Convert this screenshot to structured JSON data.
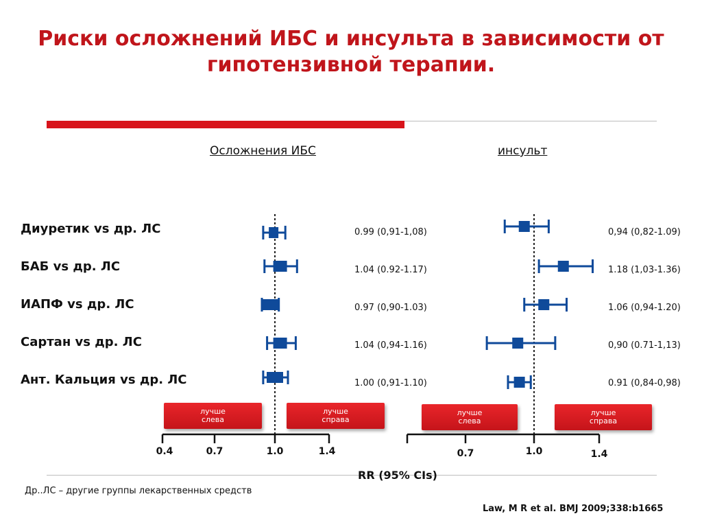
{
  "title_line1": "Риски осложнений ИБС и инсульта в зависимости от",
  "title_line2": "гипотензивной терапии.",
  "colors": {
    "title": "#c0151b",
    "accent_bar": "#d8141b",
    "marker": "#0f4a9a",
    "button": "#d81b20"
  },
  "row_labels": [
    "Диуретик vs др. ЛС",
    "БАБ vs др. ЛС",
    "ИАПФ vs др. ЛС",
    "Сартан vs др. ЛС",
    "Ант. Кальция vs др. ЛС"
  ],
  "better_left": "лучше\nслева",
  "better_right": "лучше\nсправа",
  "better_left_l1": "лучше",
  "better_left_l2": "слева",
  "better_right_l1": "лучше",
  "better_right_l2": "справа",
  "x_axis_title": "RR (95% CIs)",
  "footnote": "Др..ЛС – другие группы лекарственных средств",
  "citation": "Law, M R et al. BMJ 2009;338:b1665",
  "chart_data": [
    {
      "type": "scatter",
      "title": "Осложнения ИБС",
      "xlabel": "RR (95% CIs)",
      "ticks": [
        "0.4",
        "0.7",
        "1.0",
        "1.4"
      ],
      "reference_line": 1.0,
      "categories": [
        "Диуретик vs др. ЛС",
        "БАБ vs др. ЛС",
        "ИАПФ vs др. ЛС",
        "Сартан vs др. ЛС",
        "Ант. Кальция vs др. ЛС"
      ],
      "values": [
        0.99,
        1.04,
        0.97,
        1.04,
        1.0
      ],
      "ci_low": [
        0.91,
        0.92,
        0.9,
        0.94,
        0.91
      ],
      "ci_high": [
        1.08,
        1.17,
        1.03,
        1.16,
        1.1
      ],
      "labels": [
        "0.99 (0,91-1,08)",
        "1.04 (0.92-1.17)",
        "0.97 (0,90-1.03)",
        "1.04 (0,94-1.16)",
        "1.00 (0,91-1.10)"
      ]
    },
    {
      "type": "scatter",
      "title": "инсульт",
      "xlabel": "RR (95% CIs)",
      "ticks": [
        "0.7",
        "1.0",
        "1.4"
      ],
      "reference_line": 1.0,
      "categories": [
        "Диуретик vs др. ЛС",
        "БАБ vs др. ЛС",
        "ИАПФ vs др. ЛС",
        "Сартан vs др. ЛС",
        "Ант. Кальция vs др. ЛС"
      ],
      "values": [
        0.94,
        1.18,
        1.06,
        0.9,
        0.91
      ],
      "ci_low": [
        0.82,
        1.03,
        0.94,
        0.71,
        0.84
      ],
      "ci_high": [
        1.09,
        1.36,
        1.2,
        1.13,
        0.98
      ],
      "labels": [
        "0,94 (0,82-1.09)",
        "1.18 (1,03-1.36)",
        "1.06 (0,94-1.20)",
        "0,90 (0.71-1,13)",
        "0.91 (0,84-0,98)"
      ]
    }
  ]
}
